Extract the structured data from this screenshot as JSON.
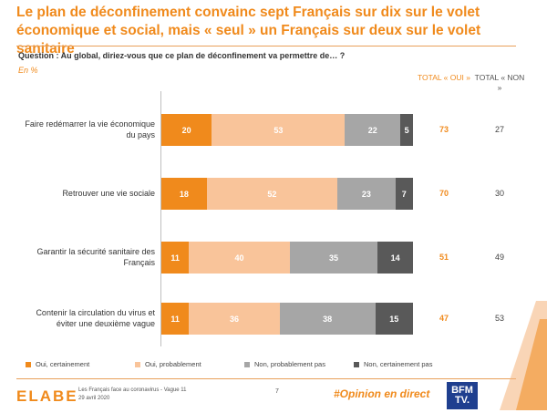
{
  "header": {
    "title": "Le plan de déconfinement convainc sept Français sur dix sur le volet économique et social, mais « seul » un Français sur deux sur le volet sanitaire",
    "question": "Question : Au global, diriez-vous que ce plan de déconfinement va permettre de… ?",
    "unit": "En %"
  },
  "columns": {
    "total_oui": "TOTAL « OUI »",
    "total_non": "TOTAL « NON »"
  },
  "colors": {
    "oui_certainement": "#f08a1c",
    "oui_probablement": "#f9c49a",
    "non_probablement_pas": "#a6a6a6",
    "non_certainement_pas": "#595959"
  },
  "chart_data": {
    "type": "bar",
    "orientation": "horizontal-stacked",
    "xlim": [
      0,
      100
    ],
    "categories": [
      "Faire redémarrer la vie économique du pays",
      "Retrouver une vie sociale",
      "Garantir la sécurité sanitaire des Français",
      "Contenir la circulation du virus et éviter une deuxième vague"
    ],
    "series": [
      {
        "name": "Oui, certainement",
        "values": [
          20,
          18,
          11,
          11
        ]
      },
      {
        "name": "Oui, probablement",
        "values": [
          53,
          52,
          40,
          36
        ]
      },
      {
        "name": "Non, probablement pas",
        "values": [
          22,
          23,
          35,
          38
        ]
      },
      {
        "name": "Non, certainement pas",
        "values": [
          5,
          7,
          14,
          15
        ]
      }
    ],
    "total_oui": [
      73,
      70,
      51,
      47
    ],
    "total_non": [
      27,
      30,
      49,
      53
    ]
  },
  "legend": [
    "Oui, certainement",
    "Oui, probablement",
    "Non, probablement pas",
    "Non, certainement pas"
  ],
  "footer": {
    "brand": "ELABE",
    "source_line1": "Les Français face au coronavirus - Vague 11",
    "source_line2": "29 avril 2020",
    "page": "7",
    "hashtag": "#Opinion en direct",
    "partner": "BFM TV."
  }
}
